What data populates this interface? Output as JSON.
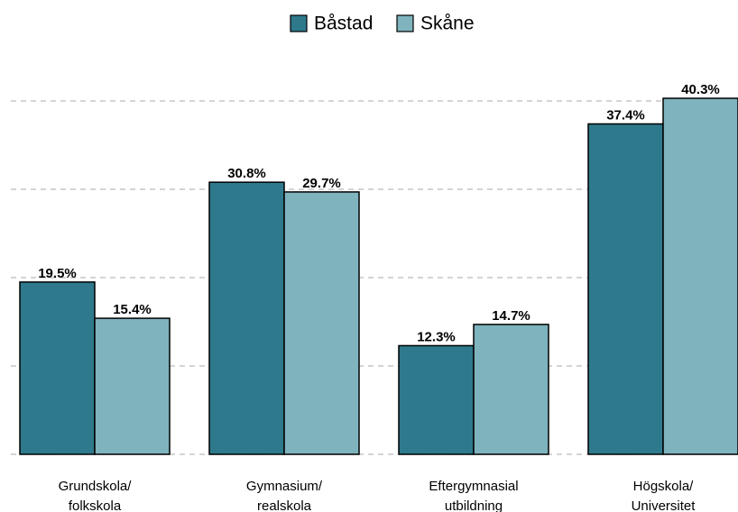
{
  "chart_data": {
    "type": "bar",
    "categories": [
      [
        "Grundskola/",
        "folkskola"
      ],
      [
        "Gymnasium/",
        "realskola"
      ],
      [
        "Eftergymnasial",
        "utbildning"
      ],
      [
        "Högskola/",
        "Universitet"
      ]
    ],
    "series": [
      {
        "name": "Båstad",
        "color": "#2e7a8c",
        "values": [
          19.5,
          30.8,
          12.3,
          37.4
        ],
        "value_labels": [
          "19.5%",
          "30.8%",
          "12.3%",
          "37.4%"
        ]
      },
      {
        "name": "Skåne",
        "color": "#7fb3bd",
        "values": [
          15.4,
          29.7,
          14.7,
          40.3
        ],
        "value_labels": [
          "15.4%",
          "29.7%",
          "14.7%",
          "40.3%"
        ]
      }
    ],
    "ylim": [
      0,
      45
    ],
    "yticks": [
      0,
      10,
      20,
      30,
      40
    ],
    "grid": true,
    "legend": "top"
  }
}
